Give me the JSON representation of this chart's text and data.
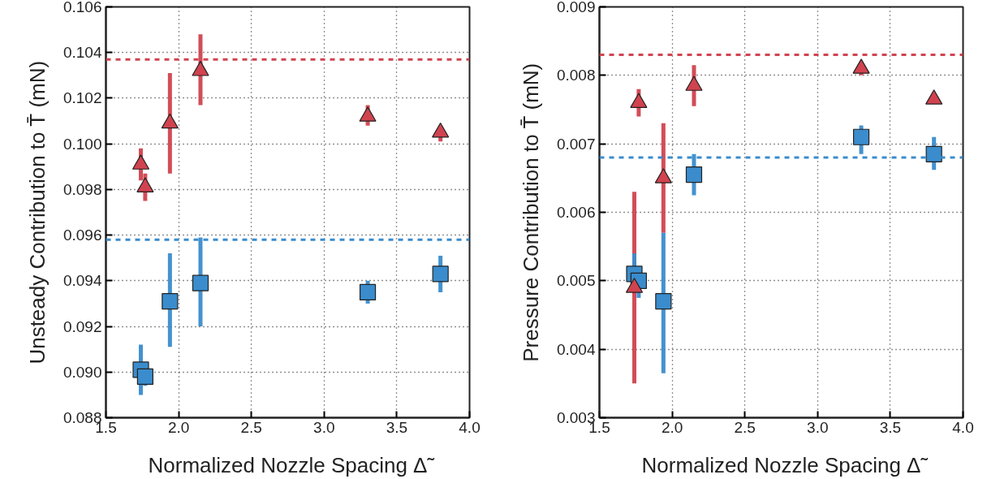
{
  "chart_data": [
    {
      "type": "scatter",
      "xlabel": "Normalized Nozzle Spacing Δ̃",
      "ylabel": "Unsteady Contribution to T̄ (mN)",
      "x": [
        1.74,
        1.77,
        1.94,
        2.15,
        3.3,
        3.8
      ],
      "series": [
        {
          "color": "#d0434f",
          "marker": "triangle",
          "values": [
            0.0991,
            0.0981,
            0.1009,
            0.1032,
            0.1012,
            0.1005
          ],
          "errors": [
            [
              0.0984,
              0.0998
            ],
            [
              0.0975,
              0.0987
            ],
            [
              0.0987,
              0.1031
            ],
            [
              0.1017,
              0.1048
            ],
            [
              0.1008,
              0.1017
            ],
            [
              0.1001,
              0.1008
            ]
          ]
        },
        {
          "color": "#3a8ccc",
          "marker": "square",
          "values": [
            0.0901,
            0.0898,
            0.0931,
            0.0939,
            0.0935,
            0.0943
          ],
          "errors": [
            [
              0.089,
              0.0912
            ],
            [
              0.0894,
              0.0902
            ],
            [
              0.0911,
              0.0952
            ],
            [
              0.092,
              0.0959
            ],
            [
              0.093,
              0.094
            ],
            [
              0.0935,
              0.0951
            ]
          ]
        }
      ],
      "ref_lines": [
        {
          "axis": "y",
          "value": 0.1037,
          "color": "#d0434f",
          "line_style": "dashed"
        },
        {
          "axis": "y",
          "value": 0.0958,
          "color": "#3a8ccc",
          "line_style": "dashed"
        }
      ],
      "xlim": [
        1.5,
        4.0
      ],
      "xticks": [
        1.5,
        {
          "value": 2.0,
          "label": "2.0"
        },
        2.5,
        {
          "value": 3.0,
          "label": "3.0"
        },
        3.5,
        {
          "value": 4.0,
          "label": "4.0"
        }
      ],
      "ylim": [
        0.088,
        0.106
      ],
      "yticks": [
        0.088,
        {
          "value": 0.09,
          "label": "0.090"
        },
        0.092,
        0.094,
        0.096,
        0.098,
        {
          "value": 0.1,
          "label": "0.100"
        },
        0.102,
        0.104,
        0.106
      ],
      "grid": true
    },
    {
      "type": "scatter",
      "xlabel": "Normalized Nozzle Spacing Δ̃",
      "ylabel": "Pressure Contribution to T̄ (mN)",
      "x": [
        1.74,
        1.77,
        1.94,
        2.15,
        3.3,
        3.8
      ],
      "series": [
        {
          "color": "#3a8ccc",
          "marker": "square",
          "values": [
            0.0051,
            0.005,
            0.0047,
            0.00655,
            0.0071,
            0.00685
          ],
          "errors": [
            [
              0.0051,
              0.0054
            ],
            [
              0.00475,
              0.0051
            ],
            [
              0.00365,
              0.0057
            ],
            [
              0.00625,
              0.00685
            ],
            [
              0.00685,
              0.00727
            ],
            [
              0.00662,
              0.0071
            ]
          ]
        },
        {
          "color": "#d0434f",
          "marker": "triangle",
          "values": [
            0.0049,
            0.0076,
            0.0065,
            0.00785,
            0.0081,
            0.00765
          ],
          "errors": [
            [
              0.0035,
              0.0063
            ],
            [
              0.0074,
              0.0078
            ],
            [
              0.0057,
              0.0073
            ],
            [
              0.00755,
              0.00815
            ],
            [
              0.008,
              0.00815
            ],
            [
              0.0076,
              0.0077
            ]
          ]
        }
      ],
      "ref_lines": [
        {
          "axis": "y",
          "value": 0.0083,
          "color": "#d0434f",
          "line_style": "dashed"
        },
        {
          "axis": "y",
          "value": 0.0068,
          "color": "#3a8ccc",
          "line_style": "dashed"
        }
      ],
      "xlim": [
        1.5,
        4.0
      ],
      "xticks": [
        1.5,
        {
          "value": 2.0,
          "label": "2.0"
        },
        2.5,
        {
          "value": 3.0,
          "label": "3.0"
        },
        3.5,
        {
          "value": 4.0,
          "label": "4.0"
        }
      ],
      "ylim": [
        0.003,
        0.009
      ],
      "yticks": [
        0.003,
        0.004,
        0.005,
        0.006,
        0.007,
        0.008,
        0.009
      ],
      "grid": true
    }
  ]
}
